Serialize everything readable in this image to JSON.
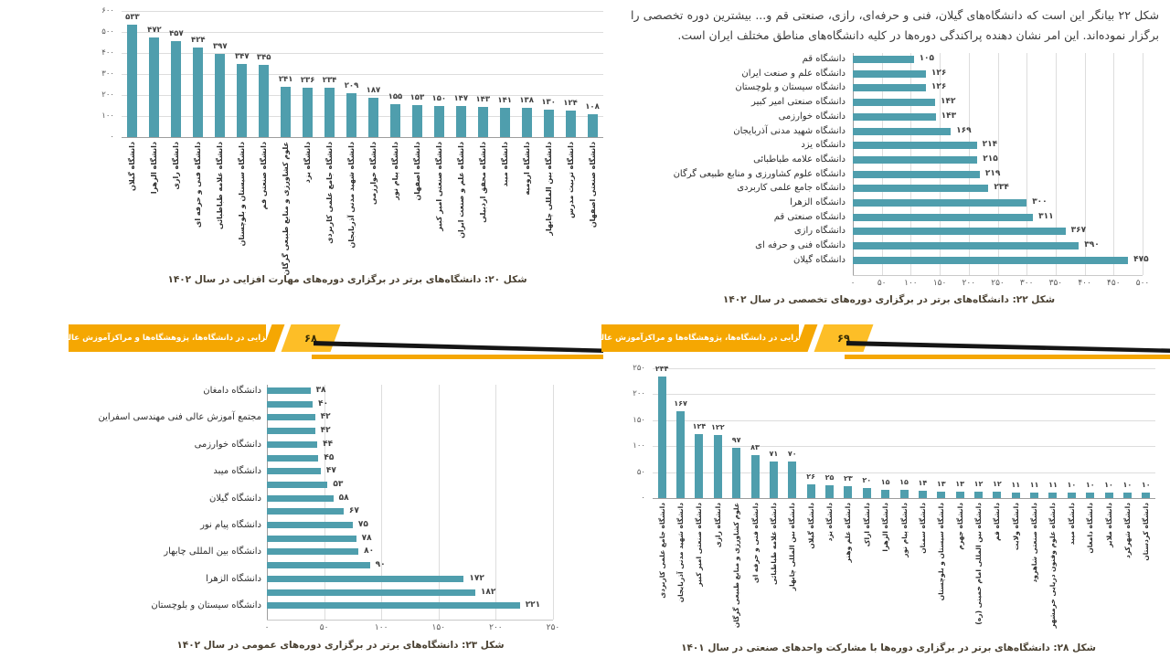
{
  "page": {
    "paragraph": "شکل ۲۲ بیانگر این است که دانشگاه‌های گیلان، فنی و حرفه‌ای، رازی، صنعتی قم و... بیشترین دوره تخصصی را برگزار نموده‌اند. این امر نشان دهنده پراکندگی دوره‌ها در کلیه دانشگاه‌های مناطق مختلف ایران است.",
    "banner": {
      "title": "مهارت‌افزایی در دانشگاه‌ها، پژوهشگاه‌ها و مراکزآموزش عالی کشور",
      "left_page_number": "۶۸",
      "right_page_number": "۶۹"
    },
    "colors": {
      "bar": "#4f9ead",
      "banner_gold": "#f5a702",
      "banner_gold_bright": "#fdbe27",
      "wedge_black": "#151515"
    }
  },
  "chart_data": [
    {
      "type": "bar",
      "orientation": "vertical",
      "title": "شکل ۲۰: دانشگاه‌های برتر در برگزاری دوره‌های مهارت افزایی در سال ۱۴۰۲",
      "number_style": "persian-digits",
      "value_axis": {
        "min": 0,
        "max": 600,
        "step": 100
      },
      "yticks": [
        0,
        100,
        200,
        300,
        400,
        500,
        600
      ],
      "categories": [
        "دانشگاه گیلان",
        "دانشگاه الزهرا",
        "دانشگاه رازی",
        "دانشگاه فنی و حرفه ای",
        "دانشگاه علامه طباطبائی",
        "دانشگاه سیستان و بلوچستان",
        "دانشگاه صنعتی قم",
        "علوم کشاورزی و منابع طبیعی گرگان",
        "دانشگاه یزد",
        "دانشگاه جامع علمی کاربردی",
        "دانشگاه شهید مدنی آذربایجان",
        "دانشگاه خوارزمی",
        "دانشگاه پیام نور",
        "دانشگاه اصفهان",
        "دانشگاه صنعتی امیر کبیر",
        "دانشگاه علم و صنعت ایران",
        "دانشگاه محقق اردبیلی",
        "دانشگاه میبد",
        "دانشگاه ارومیه",
        "دانشگاه بین المللی چابهار",
        "دانشگاه تربیت مدرس",
        "دانشگاه صنعتی اصفهان"
      ],
      "values": [
        533,
        472,
        457,
        424,
        397,
        347,
        345,
        241,
        236,
        234,
        209,
        187,
        155,
        153,
        150,
        147,
        143,
        141,
        138,
        130,
        124,
        108
      ]
    },
    {
      "type": "bar",
      "orientation": "horizontal",
      "title": "شکل ۲۲: دانشگاه‌های برتر در برگزاری دوره‌های تخصصی در سال ۱۴۰۲",
      "number_style": "persian-digits",
      "value_axis": {
        "min": 0,
        "max": 500,
        "step": 50
      },
      "xticks": [
        0,
        50,
        100,
        150,
        200,
        250,
        300,
        350,
        400,
        450,
        500
      ],
      "categories": [
        "دانشگاه قم",
        "دانشگاه علم و صنعت ایران",
        "دانشگاه سیستان و بلوچستان",
        "دانشگاه صنعتی امیر کبیر",
        "دانشگاه خوارزمی",
        "دانشگاه شهید مدنی آذربایجان",
        "دانشگاه یزد",
        "دانشگاه علامه طباطبائی",
        "دانشگاه علوم کشاورزی و منابع طبیعی گرگان",
        "دانشگاه جامع علمی کاربردی",
        "دانشگاه الزهرا",
        "دانشگاه صنعتی قم",
        "دانشگاه رازی",
        "دانشگاه فنی و حرفه ای",
        "دانشگاه گیلان"
      ],
      "values": [
        105,
        126,
        126,
        142,
        143,
        169,
        214,
        215,
        219,
        234,
        300,
        311,
        367,
        390,
        475
      ]
    },
    {
      "type": "bar",
      "orientation": "horizontal",
      "title": "شکل ۲۳: دانشگاه‌های برتر در برگزاری دوره‌های عمومی در سال ۱۴۰۲",
      "number_style": "persian-digits",
      "value_axis": {
        "min": 0,
        "max": 250,
        "step": 50
      },
      "xticks": [
        0,
        50,
        100,
        150,
        200,
        250
      ],
      "categories": [
        "دانشگاه دامغان",
        "",
        "مجتمع آموزش عالی فنی مهندسی اسفراین",
        "",
        "دانشگاه خوارزمی",
        "",
        "دانشگاه میبد",
        "",
        "دانشگاه گیلان",
        "",
        "دانشگاه پیام نور",
        "",
        "دانشگاه بین المللی چابهار",
        "",
        "دانشگاه الزهرا",
        "",
        "دانشگاه سیستان و بلوچستان"
      ],
      "values": [
        38,
        40,
        42,
        42,
        44,
        45,
        47,
        53,
        58,
        67,
        75,
        78,
        80,
        90,
        172,
        182,
        221
      ]
    },
    {
      "type": "bar",
      "orientation": "vertical",
      "title": "شکل ۲۸: دانشگاه‌های برتر در برگزاری دوره‌ها با مشارکت واحدهای صنعتی در سال ۱۴۰۱",
      "number_style": "persian-digits",
      "value_axis": {
        "min": 0,
        "max": 250,
        "step": 50
      },
      "yticks": [
        0,
        50,
        100,
        150,
        200,
        250
      ],
      "categories": [
        "دانشگاه جامع علمی کاربردی",
        "دانشگاه شهید مدنی آذربایجان",
        "دانشگاه صنعتی امیر کبیر",
        "دانشگاه رازی",
        "علوم کشاورزی و منابع طبیعی گرگان",
        "دانشگاه فنی و حرفه ای",
        "دانشگاه علامه طباطبائی",
        "دانشگاه بین المللی چابهار",
        "دانشگاه گیلان",
        "دانشگاه یزد",
        "دانشگاه علم وهنر",
        "دانشگاه اراک",
        "دانشگاه الزهرا",
        "دانشگاه پیام نور",
        "دانشگاه سمنان",
        "دانشگاه سیستان و بلوچستان",
        "دانشگاه جهرم",
        "دانشگاه بین المللی امام خمینی (ره)",
        "دانشگاه قم",
        "دانشگاه ولایت",
        "دانشگاه صنعتی شاهرود",
        "دانشگاه علوم وفنون دریایی خرمشهر",
        "دانشگاه میبد",
        "دانشگاه دامغان",
        "دانشگاه ملایر",
        "دانشگاه شهرکرد",
        "دانشگاه کردستان"
      ],
      "values": [
        234,
        167,
        124,
        122,
        97,
        83,
        71,
        70,
        26,
        25,
        23,
        20,
        15,
        15,
        14,
        13,
        13,
        12,
        12,
        11,
        11,
        11,
        10,
        10,
        10,
        10,
        10
      ]
    }
  ]
}
